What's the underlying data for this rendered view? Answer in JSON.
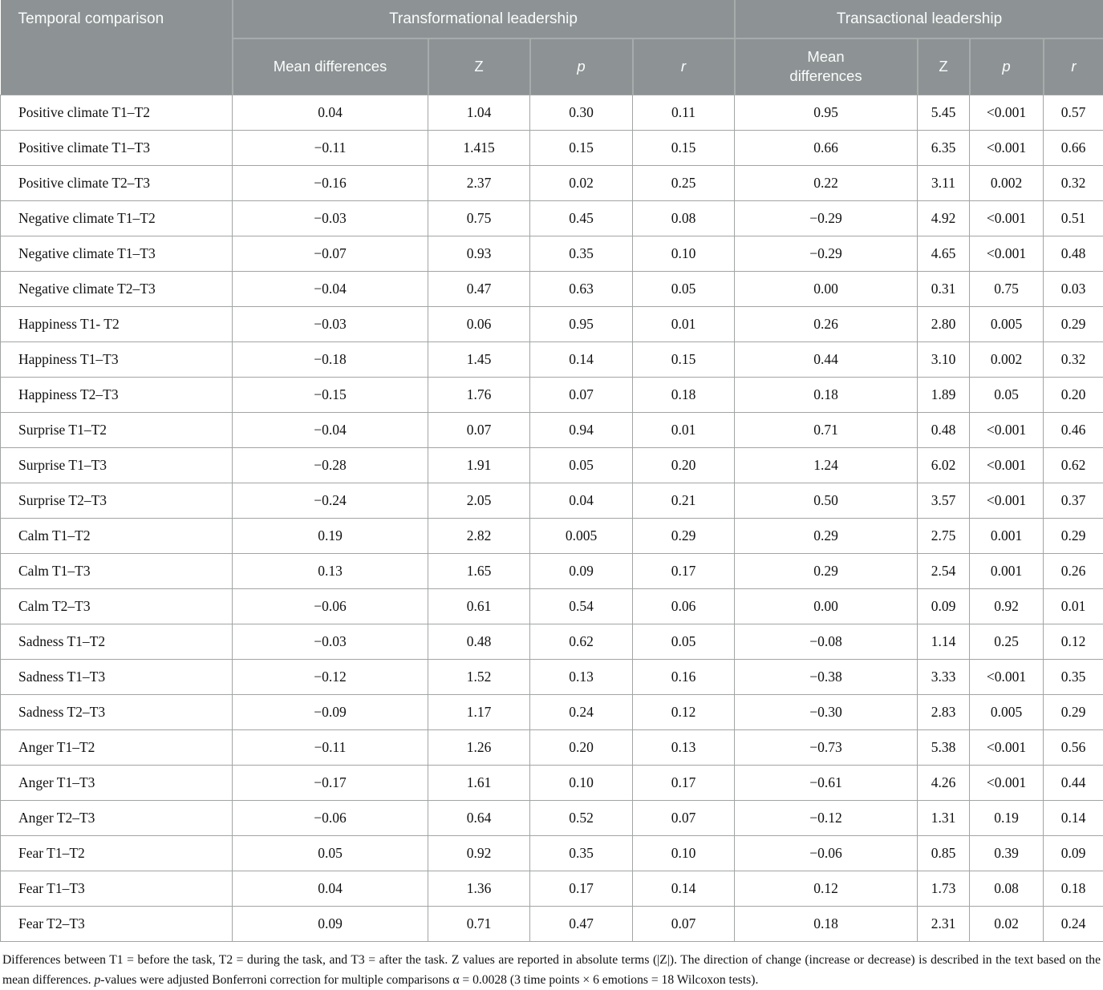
{
  "table": {
    "header": {
      "col1": "Temporal comparison",
      "group1": "Transformational leadership",
      "group2": "Transactional leadership",
      "tf_subcols": [
        "Mean differences",
        "Z",
        "p",
        "r"
      ],
      "ts_subcols": [
        "Mean differences",
        "Z",
        "p",
        "r"
      ]
    },
    "rows": [
      {
        "label": "Positive climate T1–T2",
        "tf": [
          "0.04",
          "1.04",
          "0.30",
          "0.11"
        ],
        "ts": [
          "0.95",
          "5.45",
          "<0.001",
          "0.57"
        ]
      },
      {
        "label": "Positive climate T1–T3",
        "tf": [
          "−0.11",
          "1.415",
          "0.15",
          "0.15"
        ],
        "ts": [
          "0.66",
          "6.35",
          "<0.001",
          "0.66"
        ]
      },
      {
        "label": "Positive climate T2–T3",
        "tf": [
          "−0.16",
          "2.37",
          "0.02",
          "0.25"
        ],
        "ts": [
          "0.22",
          "3.11",
          "0.002",
          "0.32"
        ]
      },
      {
        "label": "Negative climate T1–T2",
        "tf": [
          "−0.03",
          "0.75",
          "0.45",
          "0.08"
        ],
        "ts": [
          "−0.29",
          "4.92",
          "<0.001",
          "0.51"
        ]
      },
      {
        "label": "Negative climate T1–T3",
        "tf": [
          "−0.07",
          "0.93",
          "0.35",
          "0.10"
        ],
        "ts": [
          "−0.29",
          "4.65",
          "<0.001",
          "0.48"
        ]
      },
      {
        "label": "Negative climate T2–T3",
        "tf": [
          "−0.04",
          "0.47",
          "0.63",
          "0.05"
        ],
        "ts": [
          "0.00",
          "0.31",
          "0.75",
          "0.03"
        ]
      },
      {
        "label": "Happiness T1- T2",
        "tf": [
          "−0.03",
          "0.06",
          "0.95",
          "0.01"
        ],
        "ts": [
          "0.26",
          "2.80",
          "0.005",
          "0.29"
        ]
      },
      {
        "label": "Happiness T1–T3",
        "tf": [
          "−0.18",
          "1.45",
          "0.14",
          "0.15"
        ],
        "ts": [
          "0.44",
          "3.10",
          "0.002",
          "0.32"
        ]
      },
      {
        "label": "Happiness T2–T3",
        "tf": [
          "−0.15",
          "1.76",
          "0.07",
          "0.18"
        ],
        "ts": [
          "0.18",
          "1.89",
          "0.05",
          "0.20"
        ]
      },
      {
        "label": "Surprise T1–T2",
        "tf": [
          "−0.04",
          "0.07",
          "0.94",
          "0.01"
        ],
        "ts": [
          "0.71",
          "0.48",
          "<0.001",
          "0.46"
        ]
      },
      {
        "label": "Surprise T1–T3",
        "tf": [
          "−0.28",
          "1.91",
          "0.05",
          "0.20"
        ],
        "ts": [
          "1.24",
          "6.02",
          "<0.001",
          "0.62"
        ]
      },
      {
        "label": "Surprise T2–T3",
        "tf": [
          "−0.24",
          "2.05",
          "0.04",
          "0.21"
        ],
        "ts": [
          "0.50",
          "3.57",
          "<0.001",
          "0.37"
        ]
      },
      {
        "label": "Calm T1–T2",
        "tf": [
          "0.19",
          "2.82",
          "0.005",
          "0.29"
        ],
        "ts": [
          "0.29",
          "2.75",
          "0.001",
          "0.29"
        ]
      },
      {
        "label": "Calm T1–T3",
        "tf": [
          "0.13",
          "1.65",
          "0.09",
          "0.17"
        ],
        "ts": [
          "0.29",
          "2.54",
          "0.001",
          "0.26"
        ]
      },
      {
        "label": "Calm T2–T3",
        "tf": [
          "−0.06",
          "0.61",
          "0.54",
          "0.06"
        ],
        "ts": [
          "0.00",
          "0.09",
          "0.92",
          "0.01"
        ]
      },
      {
        "label": "Sadness T1–T2",
        "tf": [
          "−0.03",
          "0.48",
          "0.62",
          "0.05"
        ],
        "ts": [
          "−0.08",
          "1.14",
          "0.25",
          "0.12"
        ]
      },
      {
        "label": "Sadness T1–T3",
        "tf": [
          "−0.12",
          "1.52",
          "0.13",
          "0.16"
        ],
        "ts": [
          "−0.38",
          "3.33",
          "<0.001",
          "0.35"
        ]
      },
      {
        "label": "Sadness T2–T3",
        "tf": [
          "−0.09",
          "1.17",
          "0.24",
          "0.12"
        ],
        "ts": [
          "−0.30",
          "2.83",
          "0.005",
          "0.29"
        ]
      },
      {
        "label": "Anger T1–T2",
        "tf": [
          "−0.11",
          "1.26",
          "0.20",
          "0.13"
        ],
        "ts": [
          "−0.73",
          "5.38",
          "<0.001",
          "0.56"
        ]
      },
      {
        "label": "Anger T1–T3",
        "tf": [
          "−0.17",
          "1.61",
          "0.10",
          "0.17"
        ],
        "ts": [
          "−0.61",
          "4.26",
          "<0.001",
          "0.44"
        ]
      },
      {
        "label": "Anger T2–T3",
        "tf": [
          "−0.06",
          "0.64",
          "0.52",
          "0.07"
        ],
        "ts": [
          "−0.12",
          "1.31",
          "0.19",
          "0.14"
        ]
      },
      {
        "label": "Fear T1–T2",
        "tf": [
          "0.05",
          "0.92",
          "0.35",
          "0.10"
        ],
        "ts": [
          "−0.06",
          "0.85",
          "0.39",
          "0.09"
        ]
      },
      {
        "label": "Fear T1–T3",
        "tf": [
          "0.04",
          "1.36",
          "0.17",
          "0.14"
        ],
        "ts": [
          "0.12",
          "1.73",
          "0.08",
          "0.18"
        ]
      },
      {
        "label": "Fear T2–T3",
        "tf": [
          "0.09",
          "0.71",
          "0.47",
          "0.07"
        ],
        "ts": [
          "0.18",
          "2.31",
          "0.02",
          "0.24"
        ]
      }
    ]
  },
  "footnote": {
    "part1": "Differences between T1 = before the task, T2 = during the task, and T3 = after the task. Z values are reported in absolute terms (|Z|). The direction of change (increase or decrease) is described in the text based on the mean differences. ",
    "p_italic": "p",
    "part2": "-values were adjusted Bonferroni correction for multiple comparisons α = 0.0028 (3 time points × 6 emotions = 18 Wilcoxon tests)."
  },
  "colors": {
    "header_bg": "#8d9394",
    "header_text": "#fbfcfc",
    "header_divider": "#a6abab",
    "body_border": "#a2a4a4"
  }
}
